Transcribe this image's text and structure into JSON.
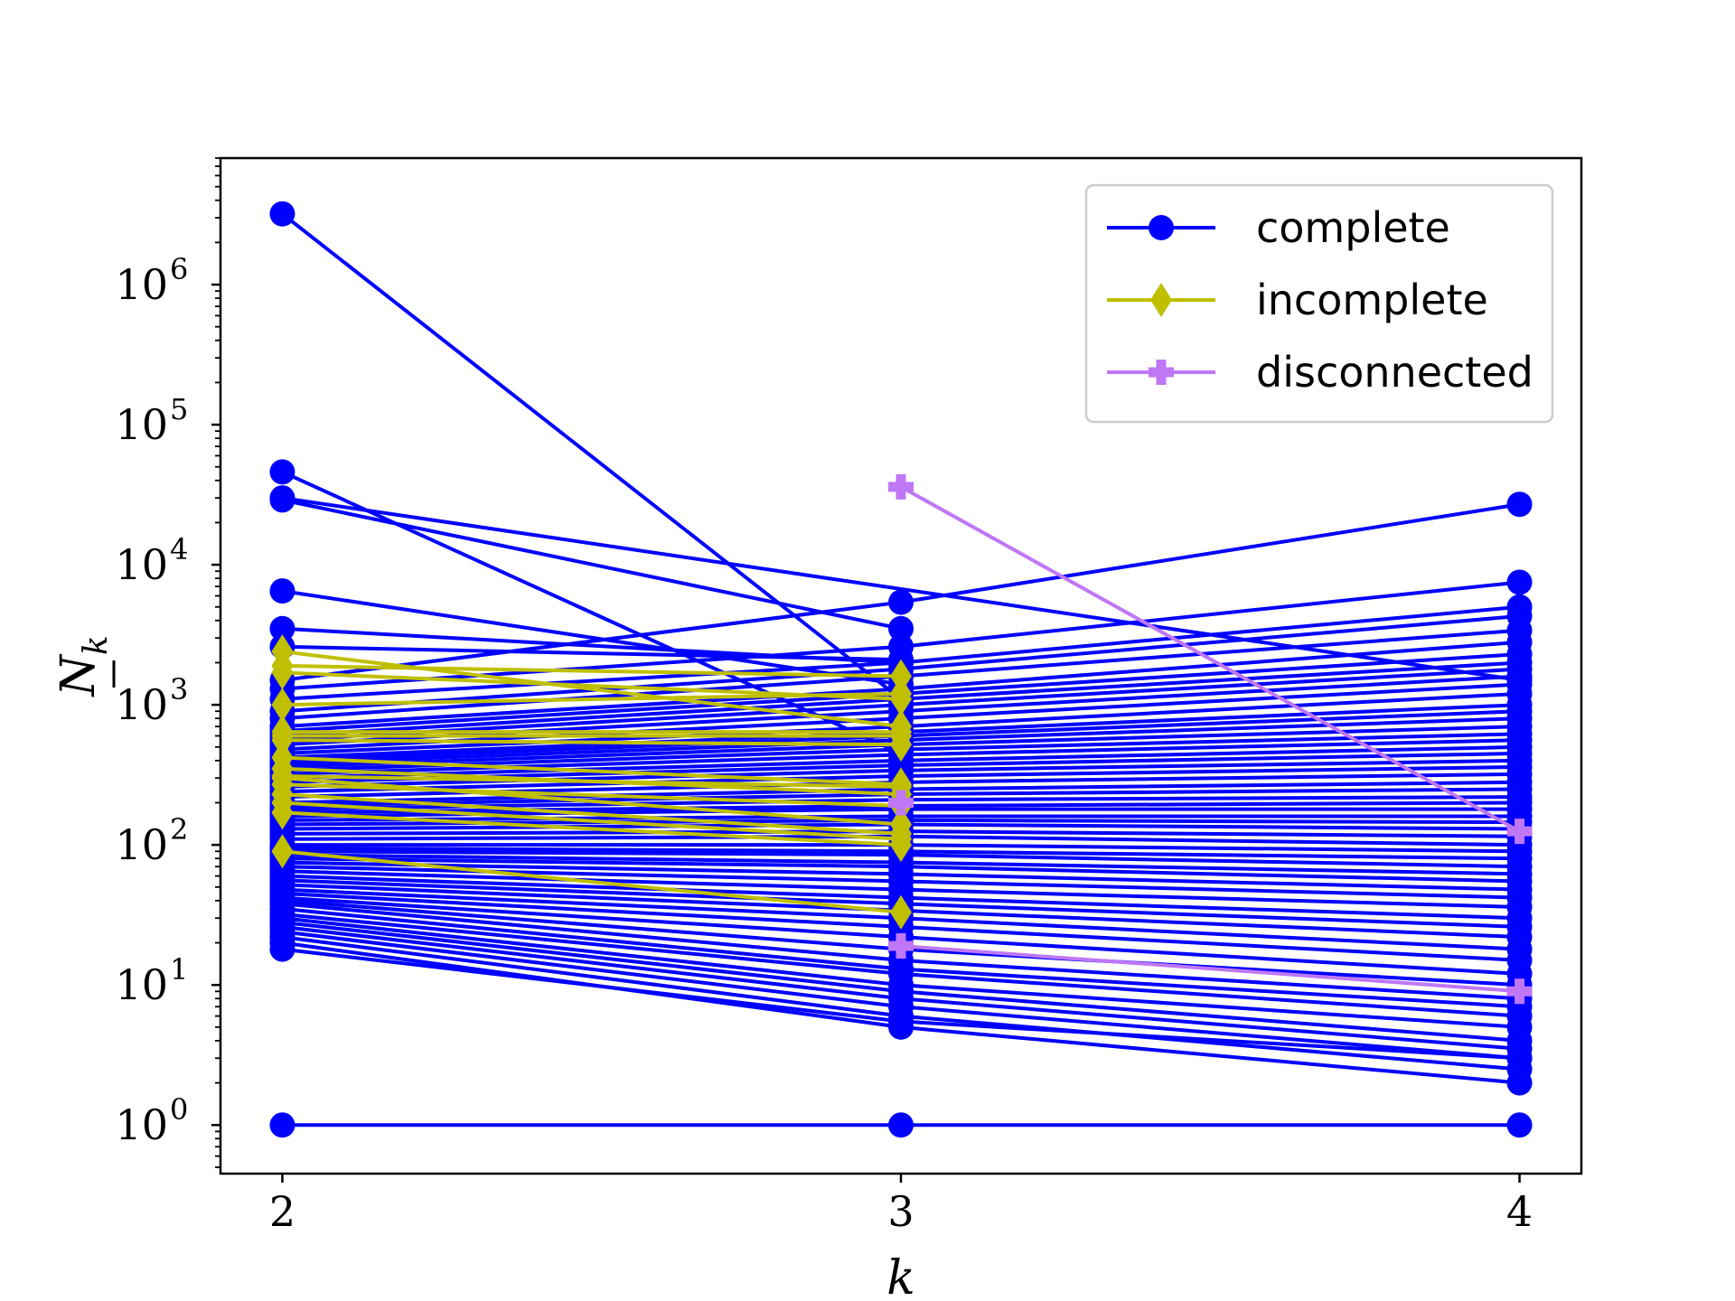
{
  "chart_data": {
    "type": "line",
    "title": "",
    "xlabel": "k",
    "ylabel": "N_k",
    "ylabel_main": "N",
    "ylabel_sub": "k",
    "yscale": "log",
    "x": [
      2,
      3,
      4
    ],
    "xlim": [
      1.9,
      4.1
    ],
    "ylim": [
      0.45,
      8000000
    ],
    "xticks": [
      2,
      3,
      4
    ],
    "xtick_labels": [
      "2",
      "3",
      "4"
    ],
    "yticks": [
      1,
      10,
      100,
      1000,
      10000,
      100000,
      1000000
    ],
    "ytick_labels": [
      {
        "base": "10",
        "exp": "0"
      },
      {
        "base": "10",
        "exp": "1"
      },
      {
        "base": "10",
        "exp": "2"
      },
      {
        "base": "10",
        "exp": "3"
      },
      {
        "base": "10",
        "exp": "4"
      },
      {
        "base": "10",
        "exp": "5"
      },
      {
        "base": "10",
        "exp": "6"
      }
    ],
    "grid": false,
    "legend": {
      "position": "top-right",
      "entries": [
        {
          "label": "complete",
          "color": "#0000ff",
          "marker": "circle"
        },
        {
          "label": "incomplete",
          "color": "#bfbf00",
          "marker": "diamond"
        },
        {
          "label": "disconnected",
          "color": "#bf77f6",
          "marker": "plus"
        }
      ]
    },
    "groups": [
      {
        "name": "complete",
        "color": "#0000ff",
        "marker": "circle",
        "series": [
          [
            3200000,
            1100,
            null
          ],
          [
            46000,
            450,
            null
          ],
          [
            30000,
            null,
            1500
          ],
          [
            29000,
            3500,
            null
          ],
          [
            6500,
            1400,
            null
          ],
          [
            3500,
            2000,
            null
          ],
          [
            2600,
            2100,
            null
          ],
          [
            1500,
            5400,
            27000
          ],
          [
            1300,
            2600,
            7500
          ],
          [
            1100,
            2000,
            5000
          ],
          [
            900,
            1800,
            4300
          ],
          [
            800,
            1600,
            3400
          ],
          [
            700,
            1300,
            2800
          ],
          [
            650,
            1200,
            2300
          ],
          [
            600,
            1100,
            2000
          ],
          [
            560,
            1000,
            1800
          ],
          [
            520,
            900,
            1600
          ],
          [
            480,
            800,
            1400
          ],
          [
            450,
            700,
            1200
          ],
          [
            420,
            640,
            1000
          ],
          [
            400,
            600,
            900
          ],
          [
            380,
            560,
            800
          ],
          [
            360,
            520,
            700
          ],
          [
            340,
            480,
            620
          ],
          [
            320,
            440,
            560
          ],
          [
            300,
            400,
            500
          ],
          [
            280,
            370,
            450
          ],
          [
            260,
            340,
            400
          ],
          [
            240,
            310,
            360
          ],
          [
            220,
            280,
            320
          ],
          [
            200,
            250,
            280
          ],
          [
            190,
            230,
            250
          ],
          [
            180,
            210,
            220
          ],
          [
            170,
            190,
            200
          ],
          [
            160,
            180,
            180
          ],
          [
            150,
            160,
            160
          ],
          [
            140,
            150,
            145
          ],
          [
            130,
            140,
            130
          ],
          [
            120,
            125,
            115
          ],
          [
            110,
            115,
            100
          ],
          [
            100,
            100,
            90
          ],
          [
            95,
            90,
            80
          ],
          [
            90,
            85,
            70
          ],
          [
            85,
            75,
            62
          ],
          [
            80,
            70,
            55
          ],
          [
            75,
            62,
            48
          ],
          [
            70,
            55,
            42
          ],
          [
            65,
            48,
            36
          ],
          [
            60,
            42,
            30
          ],
          [
            56,
            38,
            26
          ],
          [
            52,
            34,
            22
          ],
          [
            48,
            30,
            18
          ],
          [
            45,
            26,
            15
          ],
          [
            42,
            22,
            12
          ],
          [
            40,
            18,
            10
          ],
          [
            38,
            15,
            8
          ],
          [
            35,
            13,
            7
          ],
          [
            32,
            12,
            6
          ],
          [
            30,
            10,
            5
          ],
          [
            28,
            9,
            4
          ],
          [
            26,
            8,
            3.5
          ],
          [
            24,
            7,
            3
          ],
          [
            22,
            6,
            2.5
          ],
          [
            20,
            5,
            2
          ],
          [
            18,
            5.5,
            3
          ],
          [
            1,
            1,
            1
          ]
        ]
      },
      {
        "name": "incomplete",
        "color": "#bfbf00",
        "marker": "diamond",
        "series": [
          [
            2400,
            700,
            null
          ],
          [
            1900,
            1600,
            null
          ],
          [
            1700,
            1100,
            null
          ],
          [
            1000,
            1200,
            null
          ],
          [
            640,
            640,
            null
          ],
          [
            600,
            600,
            null
          ],
          [
            560,
            520,
            null
          ],
          [
            420,
            270,
            null
          ],
          [
            350,
            230,
            null
          ],
          [
            310,
            260,
            null
          ],
          [
            300,
            140,
            null
          ],
          [
            270,
            190,
            null
          ],
          [
            230,
            120,
            null
          ],
          [
            200,
            110,
            null
          ],
          [
            170,
            100,
            null
          ],
          [
            90,
            33,
            null
          ]
        ]
      },
      {
        "name": "disconnected",
        "color": "#bf77f6",
        "marker": "plus",
        "series": [
          [
            null,
            36000,
            125
          ],
          [
            null,
            19,
            9
          ],
          [
            null,
            200,
            null
          ]
        ]
      }
    ]
  }
}
